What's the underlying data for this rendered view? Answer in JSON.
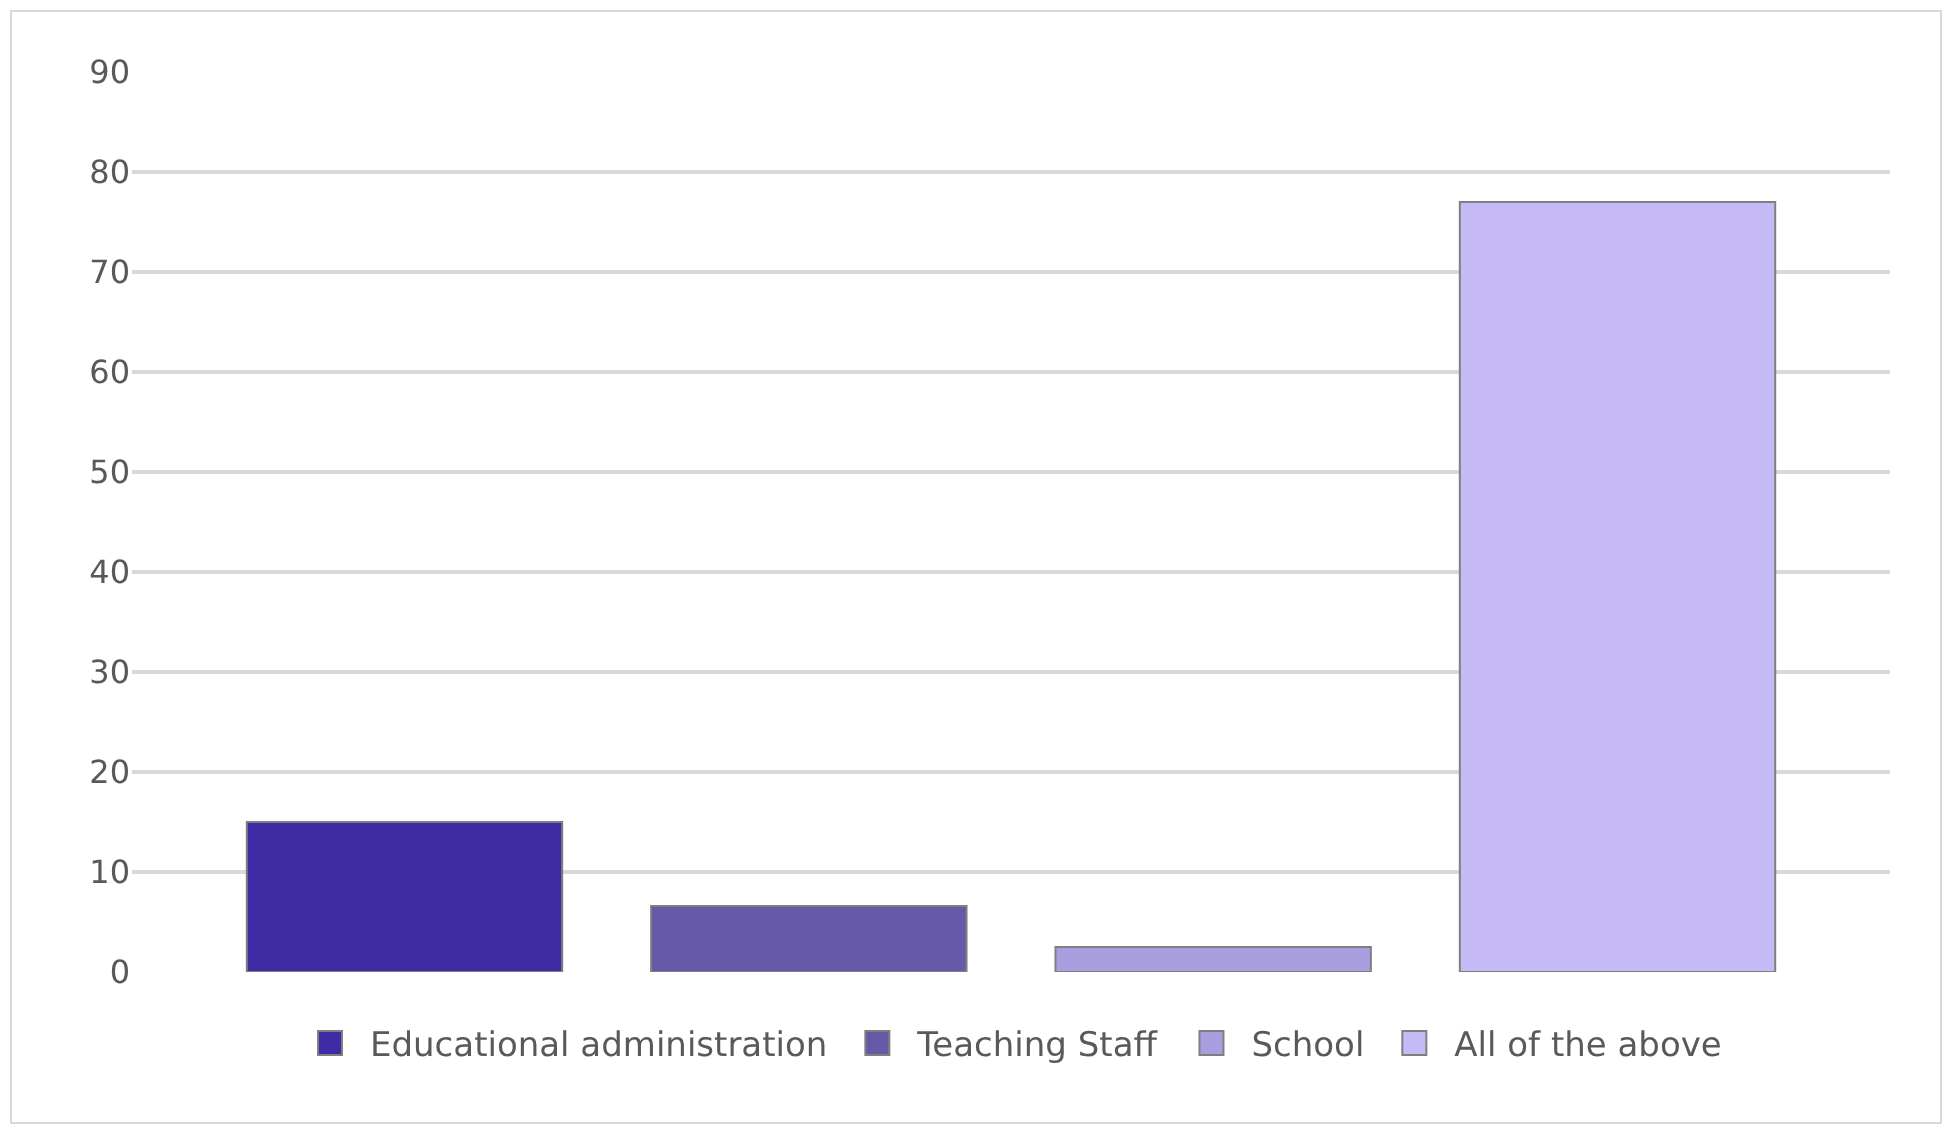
{
  "chart_data": {
    "type": "bar",
    "categories": [
      null
    ],
    "series": [
      {
        "name": "Educational administration",
        "color": "#3f2ba4",
        "values": [
          15
        ]
      },
      {
        "name": "Teaching Staff",
        "color": "#665aa8",
        "values": [
          6.6
        ]
      },
      {
        "name": "School",
        "color": "#a99fe0",
        "values": [
          2.5
        ]
      },
      {
        "name": "All of the above",
        "color": "#c5baf5",
        "values": [
          77
        ]
      }
    ],
    "ylim": [
      0,
      90
    ],
    "yticks": [
      0,
      10,
      20,
      30,
      40,
      50,
      60,
      70,
      80,
      90
    ],
    "grid": "y",
    "legend": "bottom"
  }
}
